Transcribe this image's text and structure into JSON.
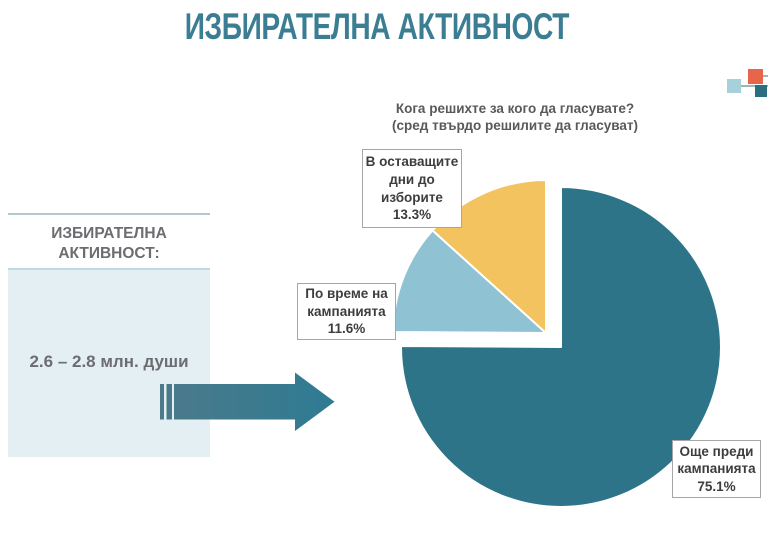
{
  "page": {
    "title": "ИЗБИРАТЕЛНА АКТИВНОСТ"
  },
  "turnout_panel": {
    "heading": "ИЗБИРАТЕЛНА\nАКТИВНОСТ:",
    "value": "2.6 – 2.8 млн. души"
  },
  "chart_header": {
    "question": "Кога решихте за кого да гласувате?\n(сред твърдо решилите да гласуват)"
  },
  "chart_data": {
    "type": "pie",
    "title": "Кога решихте за кого да гласувате? (сред твърдо решилите да гласуват)",
    "unit": "%",
    "direction": "clockwise",
    "start_angle_deg": 0,
    "exploded": true,
    "legend_position": "callouts",
    "slices": [
      {
        "label": "Още преди кампанията",
        "value": 75.1,
        "color": "#2E7488"
      },
      {
        "label": "По време на кампанията",
        "value": 11.6,
        "color": "#8FC3D4"
      },
      {
        "label": "В оставащите дни до изборите",
        "value": 13.3,
        "color": "#F3C35F"
      }
    ]
  },
  "callouts": {
    "remaining_days": "В оставащите\nдни до\nизборите\n13.3%",
    "during_campaign": "По време на\nкампанията\n11.6%",
    "before_campaign": "Още преди\nкампанията\n75.1%"
  },
  "colors": {
    "title_teal": "#3B7E94",
    "pie_dark_teal": "#2E7488",
    "pie_light_blue": "#8FC3D4",
    "pie_yellow": "#F3C35F",
    "arrow_teal": "#2F7A90",
    "panel_background": "#E3EFF2",
    "callout_text": "#3D3D3D",
    "logo_orange": "#E8654B",
    "logo_light_blue": "#A6D0DA",
    "logo_teal": "#2B6E80"
  }
}
